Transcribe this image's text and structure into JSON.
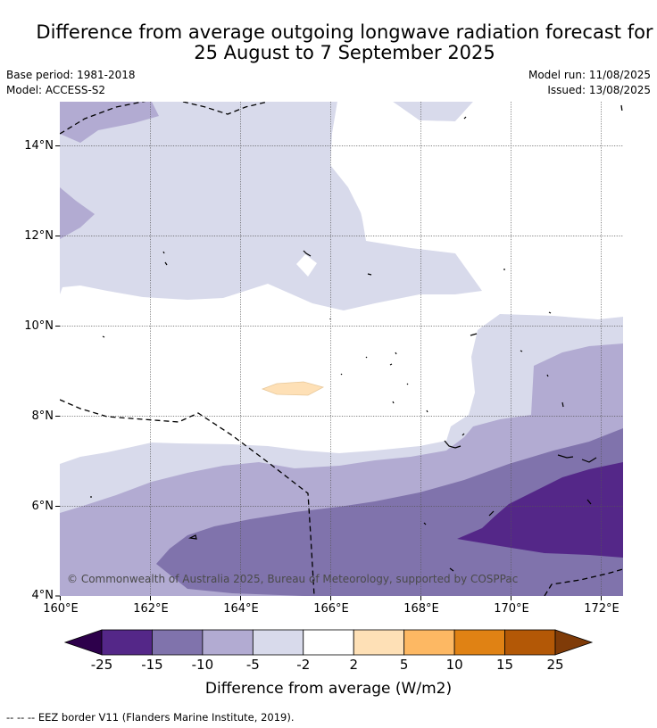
{
  "title": {
    "line1": "Difference from average outgoing longwave radiation forecast for",
    "line2": "25 August to 7 September 2025"
  },
  "meta": {
    "base_period": "Base period: 1981-2018",
    "model": "Model: ACCESS-S2",
    "model_run": "Model run: 11/08/2025",
    "issued": "Issued: 13/08/2025"
  },
  "axes": {
    "lat_ticks": [
      "14°N",
      "12°N",
      "10°N",
      "8°N",
      "6°N",
      "4°N"
    ],
    "lon_ticks": [
      "160°E",
      "162°E",
      "164°E",
      "166°E",
      "168°E",
      "170°E",
      "172°E"
    ]
  },
  "copyright": "© Commonwealth of Australia 2025, Bureau of Meteorology, supported by COSPPac",
  "colorbar": {
    "ticks": [
      "-25",
      "-15",
      "-10",
      "-5",
      "-2",
      "2",
      "5",
      "10",
      "15",
      "25"
    ],
    "colors": [
      "#2d004b",
      "#542788",
      "#8073ac",
      "#b2abd2",
      "#d8daeb",
      "#ffffff",
      "#fee0b6",
      "#fdb863",
      "#e08214",
      "#b35806",
      "#7f3b08"
    ],
    "title": "Difference from average (W/m2)"
  },
  "footnote": "--  --  -- EEZ border V11 (Flanders Marine Institute, 2019)."
}
